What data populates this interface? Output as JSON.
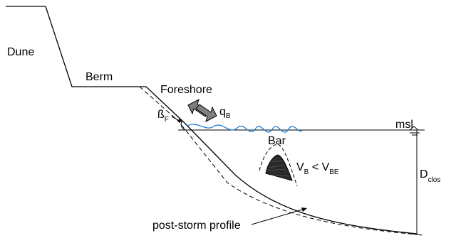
{
  "labels": {
    "dune": "Dune",
    "berm": "Berm",
    "foreshore": "Foreshore",
    "q": "q",
    "q_sub": "B",
    "beta": "ß",
    "beta_sub": "F",
    "msl": "msl",
    "bar": "Bar",
    "v1": "V",
    "v1_sub": "B",
    "lt": " < ",
    "v2": "V",
    "v2_sub": "BE",
    "d": "D",
    "d_sub": "clos",
    "post_storm": "post-storm profile"
  },
  "colors": {
    "line": "#000000",
    "wave": "#1f7fd6",
    "arrow_fill": "#7f7f7f",
    "bar_fill": "#2a2a2a"
  }
}
